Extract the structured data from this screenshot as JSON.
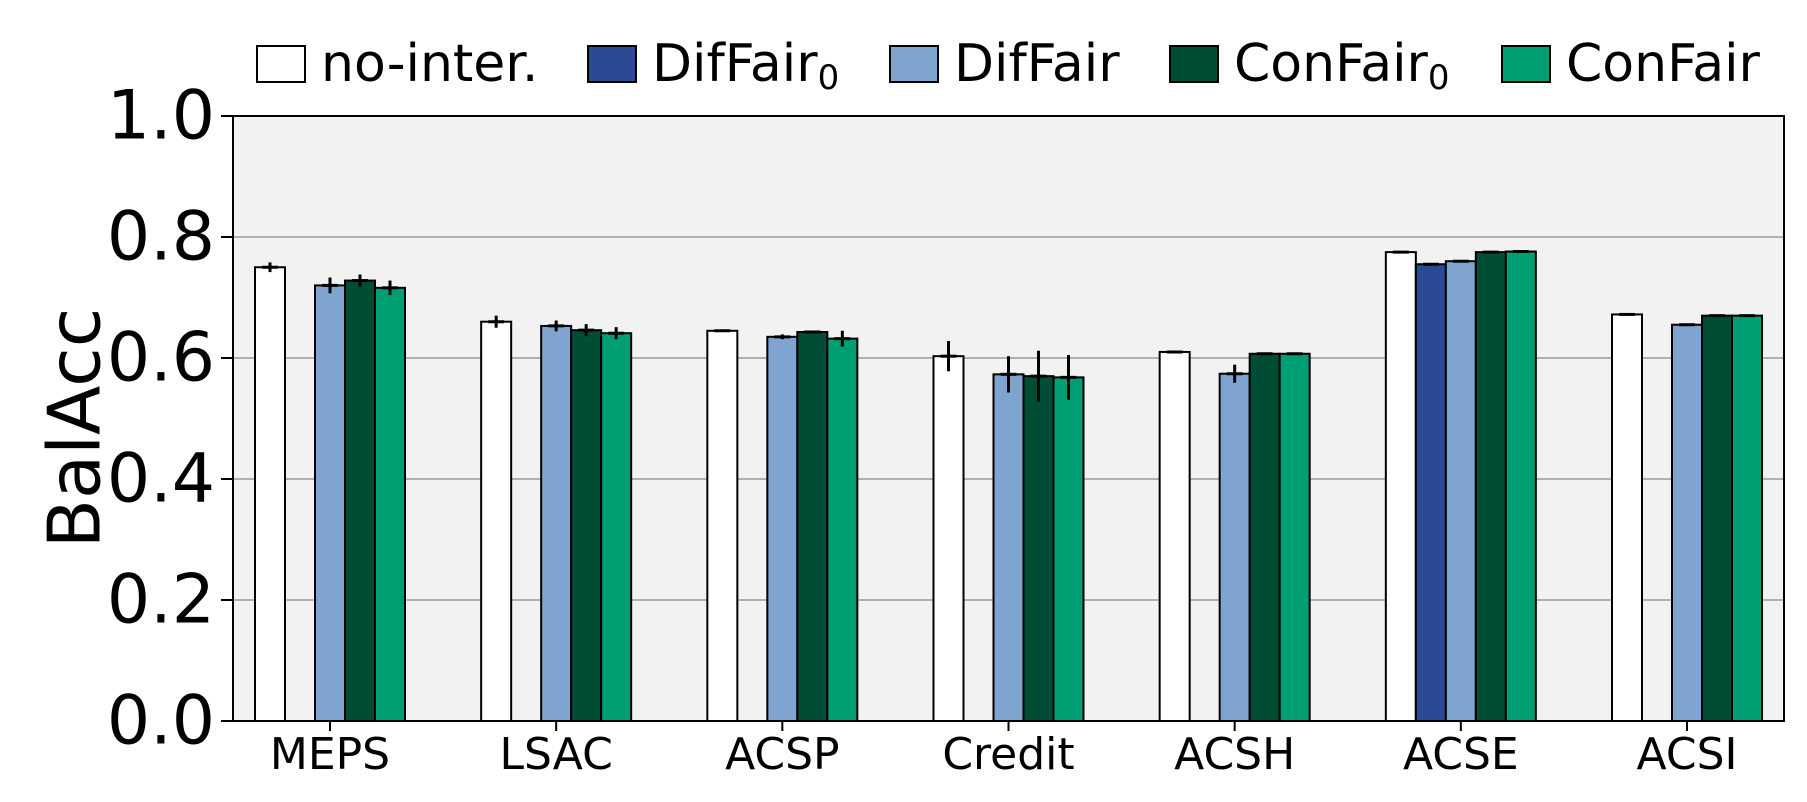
{
  "chart_data": {
    "type": "bar",
    "ylabel": "BalAcc",
    "ylim": [
      0.0,
      1.0
    ],
    "yticks": [
      "0.0",
      "0.2",
      "0.4",
      "0.6",
      "0.8",
      "1.0"
    ],
    "grid": true,
    "legend_position": "top",
    "categories": [
      "MEPS",
      "LSAC",
      "ACSP",
      "Credit",
      "ACSH",
      "ACSE",
      "ACSI"
    ],
    "series": [
      {
        "name": "no-inter.",
        "color": "#ffffff",
        "values": [
          0.75,
          0.66,
          0.645,
          0.603,
          0.61,
          0.775,
          0.672
        ],
        "errors": [
          0.008,
          0.01,
          0.002,
          0.025,
          0.002,
          0.001,
          0.001
        ]
      },
      {
        "name": "DifFair",
        "sub": "0",
        "color": "#2b4a96",
        "values": [
          null,
          null,
          null,
          null,
          null,
          0.755,
          null
        ],
        "errors": [
          null,
          null,
          null,
          null,
          null,
          0.002,
          null
        ]
      },
      {
        "name": "DifFair",
        "color": "#7fa4d0",
        "values": [
          0.72,
          0.653,
          0.635,
          0.573,
          0.574,
          0.76,
          0.655
        ],
        "errors": [
          0.013,
          0.009,
          0.004,
          0.03,
          0.015,
          0.002,
          0.002
        ]
      },
      {
        "name": "ConFair",
        "sub": "0",
        "color": "#004d36",
        "values": [
          0.728,
          0.646,
          0.643,
          0.57,
          0.607,
          0.775,
          0.67
        ],
        "errors": [
          0.01,
          0.01,
          0.002,
          0.042,
          0.001,
          0.001,
          0.001
        ]
      },
      {
        "name": "ConFair",
        "color": "#009e73",
        "values": [
          0.716,
          0.641,
          0.632,
          0.568,
          0.607,
          0.776,
          0.67
        ],
        "errors": [
          0.012,
          0.01,
          0.013,
          0.037,
          0.002,
          0.001,
          0.001
        ]
      }
    ]
  }
}
